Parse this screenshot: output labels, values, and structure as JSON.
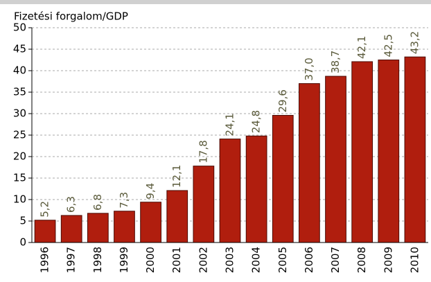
{
  "chart_data": {
    "type": "bar",
    "title": "Fizetési forgalom/GDP",
    "categories": [
      "1996",
      "1997",
      "1998",
      "1999",
      "2000",
      "2001",
      "2002",
      "2003",
      "2004",
      "2005",
      "2006",
      "2007",
      "2008",
      "2009",
      "2010"
    ],
    "values": [
      5.2,
      6.3,
      6.8,
      7.3,
      9.4,
      12.1,
      17.8,
      24.1,
      24.8,
      29.6,
      37.0,
      38.7,
      42.1,
      42.5,
      43.2
    ],
    "value_labels": [
      "5,2",
      "6,3",
      "6,8",
      "7,3",
      "9,4",
      "12,1",
      "17,8",
      "24,1",
      "24,8",
      "29,6",
      "37,0",
      "38,7",
      "42,1",
      "42,5",
      "43,2"
    ],
    "color": "#b01e0e",
    "ylim": [
      0,
      50
    ],
    "yticks": [
      0,
      5,
      10,
      15,
      20,
      25,
      30,
      35,
      40,
      45,
      50
    ],
    "grid": true
  }
}
